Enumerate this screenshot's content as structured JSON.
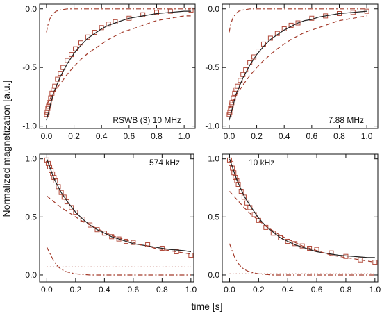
{
  "figure": {
    "ylabel": "Normalized magnetization [a.u.]",
    "xlabel": "time [s]",
    "colors": {
      "data": "#b24a3a",
      "fit": "#222222",
      "component": "#a33a2a",
      "axis": "#111111"
    }
  },
  "chart_data": [
    {
      "type": "line",
      "annotation": "RSWB (3)  10 MHz",
      "annotation_position": "bottom-right",
      "xlim": [
        -0.05,
        1.08
      ],
      "ylim": [
        -1.02,
        0.04
      ],
      "xticks": [
        0.0,
        0.2,
        0.4,
        0.6,
        0.8,
        1.0
      ],
      "xtick_labels": [
        "0.0",
        "0.2",
        "0.4",
        "0.6",
        "0.8",
        "1.0"
      ],
      "yticks": [
        -1.0,
        -0.5,
        0.0
      ],
      "ytick_labels": [
        "-1.0",
        "-0.5",
        "0.0"
      ],
      "show_xtick_labels": true,
      "show_ytick_labels": true,
      "series": [
        {
          "style": "points",
          "x": [
            0.0,
            0.005,
            0.01,
            0.015,
            0.02,
            0.03,
            0.04,
            0.05,
            0.06,
            0.08,
            0.1,
            0.12,
            0.15,
            0.18,
            0.21,
            0.25,
            0.3,
            0.35,
            0.4,
            0.45,
            0.5,
            0.6,
            0.7,
            0.8,
            0.9,
            1.05
          ],
          "y": [
            -0.9,
            -0.88,
            -0.85,
            -0.83,
            -0.8,
            -0.76,
            -0.72,
            -0.69,
            -0.66,
            -0.6,
            -0.55,
            -0.5,
            -0.44,
            -0.39,
            -0.34,
            -0.29,
            -0.24,
            -0.2,
            -0.16,
            -0.13,
            -0.11,
            -0.08,
            -0.05,
            -0.03,
            -0.02,
            -0.01
          ]
        },
        {
          "style": "solid",
          "x": [
            0.0,
            0.05,
            0.1,
            0.15,
            0.2,
            0.25,
            0.3,
            0.35,
            0.4,
            0.45,
            0.5,
            0.55,
            0.6,
            0.65,
            0.7,
            0.75,
            0.8,
            0.85,
            0.9,
            0.95,
            1.0,
            1.05
          ],
          "y": [
            -0.95,
            -0.72,
            -0.58,
            -0.47,
            -0.38,
            -0.31,
            -0.25,
            -0.21,
            -0.17,
            -0.14,
            -0.12,
            -0.1,
            -0.08,
            -0.07,
            -0.06,
            -0.05,
            -0.04,
            -0.035,
            -0.03,
            -0.025,
            -0.02,
            -0.02
          ]
        },
        {
          "style": "dashed",
          "x": [
            0.0,
            0.05,
            0.1,
            0.15,
            0.2,
            0.25,
            0.3,
            0.35,
            0.4,
            0.45,
            0.5,
            0.55,
            0.6,
            0.65,
            0.7,
            0.75,
            0.8,
            0.85,
            0.9,
            0.95,
            1.0,
            1.05
          ],
          "y": [
            -0.82,
            -0.72,
            -0.64,
            -0.56,
            -0.49,
            -0.43,
            -0.38,
            -0.34,
            -0.3,
            -0.26,
            -0.23,
            -0.2,
            -0.18,
            -0.16,
            -0.14,
            -0.12,
            -0.1,
            -0.09,
            -0.08,
            -0.07,
            -0.06,
            -0.06
          ]
        },
        {
          "style": "dashdot",
          "x": [
            0.0,
            0.01,
            0.02,
            0.03,
            0.05,
            0.07,
            0.1,
            0.15,
            0.2,
            0.3,
            0.5,
            0.8,
            1.05
          ],
          "y": [
            -0.2,
            -0.14,
            -0.1,
            -0.07,
            -0.04,
            -0.02,
            -0.01,
            0.0,
            0.0,
            0.0,
            0.0,
            0.0,
            0.0
          ]
        }
      ]
    },
    {
      "type": "line",
      "annotation": "7.88 MHz",
      "annotation_position": "bottom-right",
      "xlim": [
        -0.05,
        1.08
      ],
      "ylim": [
        -1.02,
        0.04
      ],
      "xticks": [
        0.0,
        0.2,
        0.4,
        0.6,
        0.8,
        1.0
      ],
      "xtick_labels": [
        "0.0",
        "0.2",
        "0.4",
        "0.6",
        "0.8",
        "1.0"
      ],
      "yticks": [
        -1.0,
        -0.5,
        0.0
      ],
      "ytick_labels": [
        "-1.0",
        "-0.5",
        "0.0"
      ],
      "show_xtick_labels": true,
      "show_ytick_labels": true,
      "series": [
        {
          "style": "points",
          "x": [
            0.0,
            0.005,
            0.01,
            0.015,
            0.02,
            0.03,
            0.04,
            0.05,
            0.06,
            0.08,
            0.1,
            0.12,
            0.15,
            0.18,
            0.21,
            0.25,
            0.3,
            0.35,
            0.4,
            0.45,
            0.5,
            0.6,
            0.7,
            0.8,
            0.9,
            1.0
          ],
          "y": [
            -0.9,
            -0.88,
            -0.85,
            -0.82,
            -0.8,
            -0.76,
            -0.72,
            -0.69,
            -0.66,
            -0.61,
            -0.56,
            -0.52,
            -0.46,
            -0.41,
            -0.36,
            -0.3,
            -0.25,
            -0.21,
            -0.17,
            -0.14,
            -0.12,
            -0.08,
            -0.06,
            -0.04,
            -0.03,
            -0.02
          ]
        },
        {
          "style": "solid",
          "x": [
            0.0,
            0.05,
            0.1,
            0.15,
            0.2,
            0.25,
            0.3,
            0.35,
            0.4,
            0.45,
            0.5,
            0.55,
            0.6,
            0.65,
            0.7,
            0.75,
            0.8,
            0.85,
            0.9,
            0.95,
            1.0
          ],
          "y": [
            -0.95,
            -0.73,
            -0.59,
            -0.48,
            -0.39,
            -0.32,
            -0.26,
            -0.22,
            -0.18,
            -0.15,
            -0.12,
            -0.1,
            -0.09,
            -0.07,
            -0.06,
            -0.05,
            -0.04,
            -0.035,
            -0.03,
            -0.025,
            -0.02
          ]
        },
        {
          "style": "dashed",
          "x": [
            0.0,
            0.05,
            0.1,
            0.15,
            0.2,
            0.25,
            0.3,
            0.35,
            0.4,
            0.45,
            0.5,
            0.55,
            0.6,
            0.65,
            0.7,
            0.75,
            0.8,
            0.85,
            0.9,
            0.95,
            1.0
          ],
          "y": [
            -0.85,
            -0.74,
            -0.65,
            -0.57,
            -0.5,
            -0.44,
            -0.39,
            -0.34,
            -0.3,
            -0.26,
            -0.23,
            -0.2,
            -0.18,
            -0.16,
            -0.14,
            -0.12,
            -0.1,
            -0.09,
            -0.08,
            -0.07,
            -0.06
          ]
        },
        {
          "style": "dashdot",
          "x": [
            0.0,
            0.01,
            0.02,
            0.03,
            0.05,
            0.07,
            0.1,
            0.15,
            0.2,
            0.3,
            0.5,
            0.8,
            1.0
          ],
          "y": [
            -0.2,
            -0.14,
            -0.1,
            -0.07,
            -0.04,
            -0.02,
            -0.01,
            0.0,
            0.0,
            0.0,
            0.0,
            0.0,
            0.0
          ]
        }
      ]
    },
    {
      "type": "line",
      "annotation": "574 kHz",
      "annotation_position": "top-right",
      "xlim": [
        -0.05,
        1.02
      ],
      "ylim": [
        -0.06,
        1.04
      ],
      "xticks": [
        0.0,
        0.2,
        0.4,
        0.6,
        0.8,
        1.0
      ],
      "xtick_labels": [
        "0.0",
        "0.2",
        "0.4",
        "0.6",
        "0.8",
        "1.0"
      ],
      "yticks": [
        0.0,
        0.5,
        1.0
      ],
      "ytick_labels": [
        "0.0",
        "0.5",
        "1.0"
      ],
      "show_xtick_labels": true,
      "show_ytick_labels": true,
      "series": [
        {
          "style": "points",
          "x": [
            0.0,
            0.01,
            0.02,
            0.03,
            0.04,
            0.05,
            0.06,
            0.08,
            0.1,
            0.12,
            0.14,
            0.17,
            0.2,
            0.25,
            0.3,
            0.35,
            0.4,
            0.45,
            0.5,
            0.55,
            0.6,
            0.7,
            0.8,
            0.9,
            1.0
          ],
          "y": [
            0.99,
            0.96,
            0.93,
            0.9,
            0.87,
            0.84,
            0.81,
            0.76,
            0.71,
            0.67,
            0.63,
            0.58,
            0.54,
            0.48,
            0.43,
            0.39,
            0.36,
            0.33,
            0.31,
            0.29,
            0.28,
            0.26,
            0.23,
            0.2,
            0.17
          ]
        },
        {
          "style": "solid",
          "x": [
            0.0,
            0.05,
            0.1,
            0.15,
            0.2,
            0.25,
            0.3,
            0.35,
            0.4,
            0.45,
            0.5,
            0.55,
            0.6,
            0.65,
            0.7,
            0.75,
            0.8,
            0.85,
            0.9,
            0.95,
            1.0
          ],
          "y": [
            1.0,
            0.83,
            0.71,
            0.62,
            0.54,
            0.48,
            0.43,
            0.39,
            0.36,
            0.33,
            0.31,
            0.29,
            0.27,
            0.26,
            0.25,
            0.24,
            0.23,
            0.22,
            0.215,
            0.21,
            0.2
          ]
        },
        {
          "style": "dashed",
          "x": [
            0.0,
            0.05,
            0.1,
            0.15,
            0.2,
            0.25,
            0.3,
            0.35,
            0.4,
            0.45,
            0.5,
            0.55,
            0.6,
            0.65,
            0.7,
            0.75,
            0.8,
            0.85,
            0.9,
            0.95,
            1.0
          ],
          "y": [
            0.68,
            0.63,
            0.58,
            0.54,
            0.5,
            0.46,
            0.43,
            0.4,
            0.37,
            0.34,
            0.32,
            0.3,
            0.28,
            0.26,
            0.25,
            0.23,
            0.22,
            0.21,
            0.2,
            0.19,
            0.18
          ]
        },
        {
          "style": "dashdot",
          "x": [
            0.0,
            0.02,
            0.04,
            0.06,
            0.08,
            0.1,
            0.13,
            0.16,
            0.2,
            0.3,
            0.5,
            0.8,
            1.0
          ],
          "y": [
            0.24,
            0.19,
            0.14,
            0.1,
            0.07,
            0.05,
            0.03,
            0.02,
            0.01,
            0.0,
            0.0,
            0.0,
            0.0
          ]
        },
        {
          "style": "dotted",
          "x": [
            0.0,
            1.0
          ],
          "y": [
            0.07,
            0.07
          ]
        }
      ]
    },
    {
      "type": "line",
      "annotation": "10 kHz",
      "annotation_position": "top-left",
      "xlim": [
        -0.05,
        1.02
      ],
      "ylim": [
        -0.06,
        1.04
      ],
      "xticks": [
        0.0,
        0.2,
        0.4,
        0.6,
        0.8,
        1.0
      ],
      "xtick_labels": [
        "0.0",
        "0.2",
        "0.4",
        "0.6",
        "0.8",
        "1.0"
      ],
      "yticks": [
        0.0,
        0.5,
        1.0
      ],
      "ytick_labels": [
        "0.0",
        "0.5",
        "1.0"
      ],
      "show_xtick_labels": true,
      "show_ytick_labels": true,
      "series": [
        {
          "style": "points",
          "x": [
            0.0,
            0.01,
            0.02,
            0.03,
            0.04,
            0.05,
            0.06,
            0.08,
            0.1,
            0.12,
            0.14,
            0.17,
            0.2,
            0.25,
            0.3,
            0.35,
            0.4,
            0.45,
            0.5,
            0.55,
            0.6,
            0.7,
            0.8,
            0.9,
            1.0
          ],
          "y": [
            0.99,
            0.96,
            0.92,
            0.88,
            0.84,
            0.81,
            0.78,
            0.72,
            0.67,
            0.62,
            0.58,
            0.52,
            0.47,
            0.41,
            0.36,
            0.32,
            0.29,
            0.27,
            0.25,
            0.23,
            0.22,
            0.19,
            0.16,
            0.13,
            0.11
          ]
        },
        {
          "style": "solid",
          "x": [
            0.0,
            0.05,
            0.1,
            0.15,
            0.2,
            0.25,
            0.3,
            0.35,
            0.4,
            0.45,
            0.5,
            0.55,
            0.6,
            0.65,
            0.7,
            0.75,
            0.8,
            0.85,
            0.9,
            0.95,
            1.0
          ],
          "y": [
            1.0,
            0.82,
            0.68,
            0.58,
            0.49,
            0.42,
            0.37,
            0.32,
            0.29,
            0.26,
            0.24,
            0.22,
            0.2,
            0.19,
            0.18,
            0.17,
            0.165,
            0.16,
            0.155,
            0.15,
            0.15
          ]
        },
        {
          "style": "dashed",
          "x": [
            0.0,
            0.05,
            0.1,
            0.15,
            0.2,
            0.25,
            0.3,
            0.35,
            0.4,
            0.45,
            0.5,
            0.55,
            0.6,
            0.65,
            0.7,
            0.75,
            0.8,
            0.85,
            0.9,
            0.95,
            1.0
          ],
          "y": [
            0.72,
            0.65,
            0.58,
            0.52,
            0.47,
            0.42,
            0.38,
            0.34,
            0.31,
            0.28,
            0.25,
            0.23,
            0.21,
            0.19,
            0.17,
            0.16,
            0.15,
            0.14,
            0.13,
            0.12,
            0.11
          ]
        },
        {
          "style": "dashdot",
          "x": [
            0.0,
            0.02,
            0.04,
            0.06,
            0.08,
            0.1,
            0.13,
            0.16,
            0.2,
            0.3,
            0.5,
            0.8,
            1.0
          ],
          "y": [
            0.27,
            0.2,
            0.14,
            0.1,
            0.07,
            0.05,
            0.03,
            0.02,
            0.01,
            0.0,
            0.0,
            0.0,
            0.0
          ]
        },
        {
          "style": "dotted",
          "x": [
            0.0,
            1.0
          ],
          "y": [
            0.01,
            0.01
          ]
        }
      ]
    }
  ]
}
